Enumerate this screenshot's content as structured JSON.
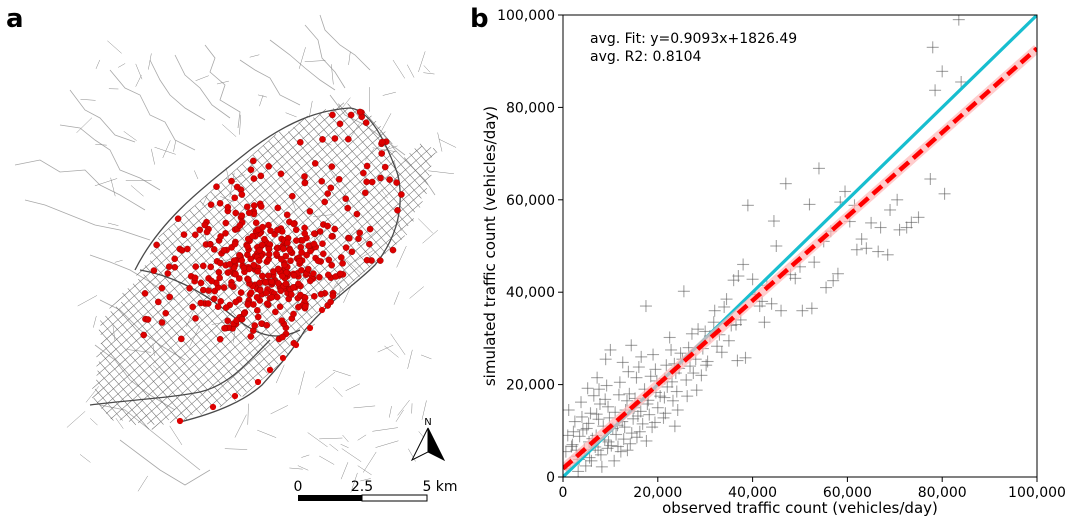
{
  "panel_a": {
    "label": "a",
    "north_label": "N",
    "scale_ticks": [
      "0",
      "2.5",
      "5 km"
    ],
    "colors": {
      "street": "#6f6f6f",
      "road": "#a8a8a8",
      "station": "#dd0000"
    },
    "station_count": 430
  },
  "panel_b": {
    "label": "b",
    "annotation_fit": "avg. Fit: y=0.9093x+1826.49",
    "annotation_r2": "avg. R2: 0.8104",
    "colors": {
      "points": "#555555",
      "identity_line": "#17becf",
      "fit_line": "#ff0000",
      "fit_band": "#ffb6b6"
    }
  },
  "chart_data": {
    "type": "scatter",
    "xlabel": "observed traffic count (vehicles/day)",
    "ylabel": "simulated traffic count (vehicles/day)",
    "xlim": [
      0,
      100000
    ],
    "ylim": [
      0,
      100000
    ],
    "x_ticks": [
      0,
      20000,
      40000,
      60000,
      80000,
      100000
    ],
    "y_ticks": [
      0,
      20000,
      40000,
      60000,
      80000,
      100000
    ],
    "x_tick_labels": [
      "0",
      "20,000",
      "40,000",
      "60,000",
      "80,000",
      "100,000"
    ],
    "y_tick_labels": [
      "0",
      "20,000",
      "40,000",
      "60,000",
      "80,000",
      "100,000"
    ],
    "grid": false,
    "marker": "plus",
    "fit": {
      "slope": 0.9093,
      "intercept": 1826.49,
      "r2": 0.8104
    },
    "identity_line": {
      "slope": 1,
      "intercept": 0
    },
    "points": [
      [
        83500,
        99000
      ],
      [
        78000,
        93000
      ],
      [
        80000,
        87800
      ],
      [
        78500,
        83700
      ],
      [
        84000,
        85500
      ],
      [
        80500,
        61300
      ],
      [
        77500,
        64500
      ],
      [
        75000,
        56200
      ],
      [
        73500,
        55100
      ],
      [
        72500,
        54000
      ],
      [
        71000,
        53500
      ],
      [
        68500,
        48100
      ],
      [
        66500,
        48800
      ],
      [
        64000,
        49500
      ],
      [
        62000,
        49200
      ],
      [
        59500,
        61800
      ],
      [
        58500,
        59500
      ],
      [
        58000,
        44000
      ],
      [
        57000,
        42500
      ],
      [
        55500,
        41000
      ],
      [
        54000,
        66800
      ],
      [
        52000,
        59000
      ],
      [
        52500,
        36500
      ],
      [
        50500,
        36000
      ],
      [
        49000,
        43000
      ],
      [
        47000,
        63500
      ],
      [
        45000,
        50000
      ],
      [
        44500,
        55400
      ],
      [
        43000,
        41500
      ],
      [
        42000,
        38000
      ],
      [
        41500,
        37000
      ],
      [
        40500,
        39500
      ],
      [
        39000,
        58800
      ],
      [
        38000,
        46000
      ],
      [
        37000,
        43500
      ],
      [
        37500,
        34000
      ],
      [
        36000,
        42600
      ],
      [
        35500,
        32800
      ],
      [
        34000,
        36800
      ],
      [
        33000,
        30800
      ],
      [
        32500,
        28300
      ],
      [
        31000,
        30500
      ],
      [
        30500,
        25000
      ],
      [
        29500,
        27800
      ],
      [
        28000,
        25500
      ],
      [
        27500,
        22500
      ],
      [
        26500,
        28000
      ],
      [
        25500,
        40200
      ],
      [
        24500,
        23500
      ],
      [
        23500,
        24500
      ],
      [
        22500,
        30200
      ],
      [
        21500,
        21300
      ],
      [
        20500,
        17500
      ],
      [
        19500,
        23300
      ],
      [
        18500,
        21800
      ],
      [
        17500,
        37000
      ],
      [
        16500,
        26000
      ],
      [
        15500,
        21500
      ],
      [
        15000,
        15000
      ],
      [
        14000,
        18000
      ],
      [
        13500,
        16500
      ],
      [
        12500,
        12000
      ],
      [
        12000,
        20500
      ],
      [
        11000,
        14000
      ],
      [
        10500,
        10500
      ],
      [
        9500,
        15200
      ],
      [
        9000,
        25500
      ],
      [
        8500,
        11000
      ],
      [
        7500,
        12500
      ],
      [
        7000,
        9000
      ],
      [
        6500,
        17600
      ],
      [
        5500,
        7600
      ],
      [
        5000,
        10500
      ],
      [
        4500,
        6000
      ],
      [
        3500,
        8800
      ],
      [
        3000,
        4500
      ],
      [
        2500,
        12000
      ],
      [
        2000,
        7000
      ],
      [
        1500,
        3000
      ],
      [
        1000,
        9000
      ],
      [
        800,
        1800
      ],
      [
        600,
        5500
      ],
      [
        3200,
        1200
      ],
      [
        6000,
        3500
      ],
      [
        8200,
        2200
      ],
      [
        10200,
        6800
      ],
      [
        12800,
        8200
      ],
      [
        14500,
        9500
      ],
      [
        16800,
        11500
      ],
      [
        18200,
        13500
      ],
      [
        20000,
        15000
      ],
      [
        22000,
        19500
      ],
      [
        24000,
        18500
      ],
      [
        26000,
        21000
      ],
      [
        28500,
        32000
      ],
      [
        30000,
        31500
      ],
      [
        31800,
        33500
      ],
      [
        33500,
        27000
      ],
      [
        35000,
        29500
      ],
      [
        36500,
        33000
      ],
      [
        19000,
        26500
      ],
      [
        17200,
        19000
      ],
      [
        15800,
        13200
      ],
      [
        13800,
        22800
      ],
      [
        11800,
        17800
      ],
      [
        9800,
        12800
      ],
      [
        7800,
        15800
      ],
      [
        5800,
        13800
      ],
      [
        4200,
        10200
      ],
      [
        2800,
        5800
      ],
      [
        10800,
        3500
      ],
      [
        12200,
        5500
      ],
      [
        14200,
        7200
      ],
      [
        16200,
        9800
      ],
      [
        18800,
        10800
      ],
      [
        21200,
        12800
      ],
      [
        23200,
        16500
      ],
      [
        25200,
        25500
      ],
      [
        27200,
        31000
      ],
      [
        29200,
        22000
      ],
      [
        4800,
        2400
      ],
      [
        6800,
        6500
      ],
      [
        8800,
        8000
      ],
      [
        11500,
        11200
      ],
      [
        13200,
        14500
      ],
      [
        15200,
        17000
      ],
      [
        17800,
        15800
      ],
      [
        19800,
        20800
      ],
      [
        21800,
        24200
      ],
      [
        23800,
        22500
      ],
      [
        1200,
        14500
      ],
      [
        3800,
        16200
      ],
      [
        5200,
        19200
      ],
      [
        7200,
        21500
      ],
      [
        9200,
        19800
      ],
      [
        24200,
        14500
      ],
      [
        26200,
        17500
      ],
      [
        28200,
        18800
      ],
      [
        30200,
        24200
      ],
      [
        22800,
        27500
      ],
      [
        42500,
        33500
      ],
      [
        44000,
        37500
      ],
      [
        46000,
        36000
      ],
      [
        48000,
        43800
      ],
      [
        50000,
        45500
      ],
      [
        53000,
        46500
      ],
      [
        55000,
        51000
      ],
      [
        56500,
        53200
      ],
      [
        60500,
        55300
      ],
      [
        61500,
        58800
      ],
      [
        63000,
        51500
      ],
      [
        65000,
        55000
      ],
      [
        67000,
        54000
      ],
      [
        69000,
        57800
      ],
      [
        70500,
        60000
      ],
      [
        38500,
        25800
      ],
      [
        40000,
        42800
      ],
      [
        34500,
        38500
      ],
      [
        32000,
        36000
      ],
      [
        36800,
        25200
      ],
      [
        2200,
        9800
      ],
      [
        4000,
        13000
      ],
      [
        6200,
        8300
      ],
      [
        8000,
        4800
      ],
      [
        9600,
        7600
      ],
      [
        11200,
        9200
      ],
      [
        13000,
        10800
      ],
      [
        14800,
        12600
      ],
      [
        16400,
        14200
      ],
      [
        18000,
        16600
      ],
      [
        19600,
        18300
      ],
      [
        21400,
        17200
      ],
      [
        23000,
        20600
      ],
      [
        24800,
        26800
      ],
      [
        26800,
        24000
      ],
      [
        10000,
        27500
      ],
      [
        12600,
        24800
      ],
      [
        14400,
        28500
      ],
      [
        16000,
        23800
      ],
      [
        7600,
        19000
      ],
      [
        5600,
        4200
      ],
      [
        7400,
        5800
      ],
      [
        9400,
        6200
      ],
      [
        11600,
        6600
      ],
      [
        13600,
        5800
      ],
      [
        15600,
        8600
      ],
      [
        17600,
        7800
      ],
      [
        19400,
        11800
      ],
      [
        21600,
        13800
      ],
      [
        23600,
        11000
      ],
      [
        1800,
        6600
      ],
      [
        3400,
        3800
      ],
      [
        5400,
        11600
      ],
      [
        7100,
        13600
      ],
      [
        8900,
        16800
      ]
    ]
  }
}
